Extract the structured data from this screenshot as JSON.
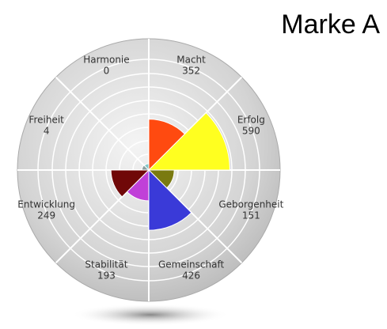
{
  "chart_data": {
    "type": "polar",
    "title": "Marke A",
    "categories": [
      "Macht",
      "Erfolg",
      "Geborgenheit",
      "Gemeinschaft",
      "Stabilität",
      "Entwicklung",
      "Freiheit",
      "Harmonie"
    ],
    "values": [
      352,
      590,
      151,
      426,
      193,
      249,
      4,
      0
    ],
    "colors": [
      "#ff4a10",
      "#ffff20",
      "#7a7a10",
      "#3a3ad8",
      "#c040d8",
      "#700808",
      "#8aa0a0",
      "#80c8c8"
    ]
  }
}
